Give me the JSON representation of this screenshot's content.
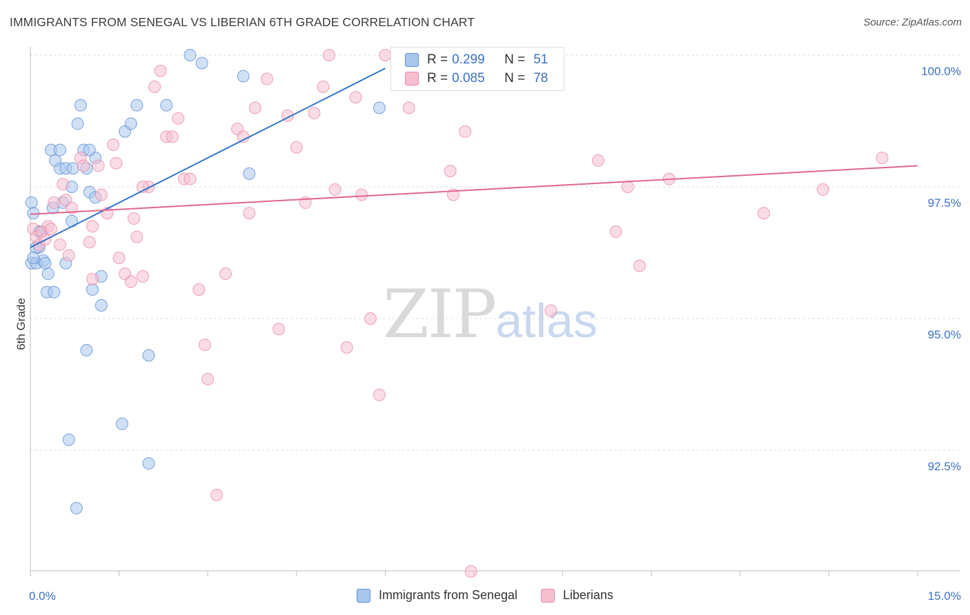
{
  "title": "IMMIGRANTS FROM SENEGAL VS LIBERIAN 6TH GRADE CORRELATION CHART",
  "source": "Source: ZipAtlas.com",
  "watermark": {
    "zip": "ZIP",
    "atlas": "atlas"
  },
  "legend": {
    "series1": {
      "r_label": "R =",
      "r_value": "0.299",
      "n_label": "N =",
      "n_value": "51"
    },
    "series2": {
      "r_label": "R =",
      "r_value": "0.085",
      "n_label": "N =",
      "n_value": "78"
    }
  },
  "bottom_legend": [
    "Immigrants from Senegal",
    "Liberians"
  ],
  "colors": {
    "blue_fill": "#a9c6ec",
    "blue_stroke": "#5b8fd6",
    "blue_line": "#2f72cc",
    "pink_fill": "#f6bfd0",
    "pink_stroke": "#e88aa9",
    "pink_line": "#e0668e",
    "tick_label": "#3c6fc4",
    "grid": "#d9d9d9"
  },
  "chart_data": {
    "type": "scatter",
    "title": "IMMIGRANTS FROM SENEGAL VS LIBERIAN 6TH GRADE CORRELATION CHART",
    "xlabel": "",
    "ylabel": "6th Grade",
    "xlim": [
      0,
      15
    ],
    "ylim": [
      90.2,
      100.25
    ],
    "x_tick_labels": [
      "0.0%",
      "15.0%"
    ],
    "y_ticks": [
      92.5,
      95.0,
      97.5,
      100.0
    ],
    "y_tick_labels": [
      "92.5%",
      "95.0%",
      "97.5%",
      "100.0%"
    ],
    "grid": "horizontal dashed",
    "series": [
      {
        "name": "Immigrants from Senegal",
        "color": "#5b8fd6",
        "trend": {
          "x": [
            0.0,
            6.0
          ],
          "y": [
            96.35,
            99.75
          ]
        },
        "points": [
          [
            0.02,
            97.2
          ],
          [
            0.05,
            97.0
          ],
          [
            0.02,
            96.05
          ],
          [
            0.1,
            96.05
          ],
          [
            0.15,
            96.35
          ],
          [
            0.22,
            96.1
          ],
          [
            0.25,
            96.05
          ],
          [
            0.3,
            95.85
          ],
          [
            0.28,
            95.5
          ],
          [
            0.4,
            95.5
          ],
          [
            0.1,
            96.35
          ],
          [
            0.15,
            96.65
          ],
          [
            0.38,
            97.1
          ],
          [
            0.55,
            97.2
          ],
          [
            0.7,
            96.85
          ],
          [
            0.5,
            97.85
          ],
          [
            0.6,
            97.85
          ],
          [
            0.72,
            97.85
          ],
          [
            0.42,
            98.0
          ],
          [
            0.95,
            97.85
          ],
          [
            0.7,
            97.5
          ],
          [
            1.0,
            97.4
          ],
          [
            1.1,
            97.3
          ],
          [
            1.1,
            98.05
          ],
          [
            0.35,
            98.2
          ],
          [
            0.5,
            98.2
          ],
          [
            0.9,
            98.2
          ],
          [
            1.0,
            98.2
          ],
          [
            0.8,
            98.7
          ],
          [
            0.85,
            99.05
          ],
          [
            1.6,
            98.55
          ],
          [
            1.7,
            98.7
          ],
          [
            1.8,
            99.05
          ],
          [
            2.3,
            99.05
          ],
          [
            2.7,
            100.0
          ],
          [
            2.9,
            99.85
          ],
          [
            3.6,
            99.6
          ],
          [
            5.9,
            99.0
          ],
          [
            3.7,
            97.75
          ],
          [
            1.2,
            95.8
          ],
          [
            1.05,
            95.55
          ],
          [
            1.2,
            95.25
          ],
          [
            0.95,
            94.4
          ],
          [
            2.0,
            94.3
          ],
          [
            1.55,
            93.0
          ],
          [
            0.65,
            92.7
          ],
          [
            2.0,
            92.25
          ],
          [
            0.78,
            91.4
          ],
          [
            0.05,
            96.15
          ],
          [
            0.18,
            96.65
          ],
          [
            0.6,
            96.05
          ]
        ]
      },
      {
        "name": "Liberians",
        "color": "#e88aa9",
        "trend": {
          "x": [
            0.0,
            15.0
          ],
          "y": [
            96.98,
            97.9
          ]
        },
        "points": [
          [
            0.05,
            96.7
          ],
          [
            0.1,
            96.55
          ],
          [
            0.15,
            96.4
          ],
          [
            0.2,
            96.65
          ],
          [
            0.25,
            96.5
          ],
          [
            0.3,
            96.75
          ],
          [
            0.35,
            96.7
          ],
          [
            0.4,
            97.2
          ],
          [
            0.5,
            96.4
          ],
          [
            0.55,
            97.55
          ],
          [
            0.6,
            97.25
          ],
          [
            0.65,
            96.2
          ],
          [
            0.7,
            97.1
          ],
          [
            0.85,
            98.05
          ],
          [
            0.9,
            97.9
          ],
          [
            1.0,
            96.45
          ],
          [
            1.05,
            96.75
          ],
          [
            1.15,
            97.9
          ],
          [
            1.2,
            97.35
          ],
          [
            1.3,
            97.0
          ],
          [
            1.4,
            98.3
          ],
          [
            1.45,
            97.95
          ],
          [
            1.5,
            96.15
          ],
          [
            1.6,
            95.85
          ],
          [
            1.7,
            95.7
          ],
          [
            1.75,
            96.9
          ],
          [
            1.8,
            96.55
          ],
          [
            1.9,
            95.8
          ],
          [
            2.0,
            97.5
          ],
          [
            2.1,
            99.4
          ],
          [
            2.2,
            99.7
          ],
          [
            2.3,
            98.45
          ],
          [
            2.4,
            98.45
          ],
          [
            2.5,
            98.8
          ],
          [
            2.6,
            97.65
          ],
          [
            2.7,
            97.65
          ],
          [
            2.85,
            95.55
          ],
          [
            2.95,
            94.5
          ],
          [
            3.0,
            93.85
          ],
          [
            3.15,
            91.65
          ],
          [
            3.3,
            95.85
          ],
          [
            3.5,
            98.6
          ],
          [
            3.6,
            98.45
          ],
          [
            3.7,
            97.0
          ],
          [
            3.8,
            99.0
          ],
          [
            4.0,
            99.55
          ],
          [
            4.2,
            94.8
          ],
          [
            4.35,
            98.85
          ],
          [
            4.5,
            98.25
          ],
          [
            4.65,
            97.2
          ],
          [
            4.8,
            98.9
          ],
          [
            4.95,
            99.4
          ],
          [
            5.05,
            100.0
          ],
          [
            5.15,
            97.45
          ],
          [
            5.35,
            94.45
          ],
          [
            5.5,
            99.2
          ],
          [
            5.6,
            97.35
          ],
          [
            5.75,
            95.0
          ],
          [
            5.9,
            93.55
          ],
          [
            6.0,
            100.0
          ],
          [
            6.4,
            99.0
          ],
          [
            6.9,
            99.5
          ],
          [
            6.95,
            99.5
          ],
          [
            7.1,
            97.8
          ],
          [
            7.15,
            97.35
          ],
          [
            7.35,
            98.55
          ],
          [
            7.45,
            90.2
          ],
          [
            8.8,
            95.15
          ],
          [
            9.6,
            98.0
          ],
          [
            9.9,
            96.65
          ],
          [
            10.1,
            97.5
          ],
          [
            10.3,
            96.0
          ],
          [
            10.8,
            97.65
          ],
          [
            12.4,
            97.0
          ],
          [
            13.4,
            97.45
          ],
          [
            14.4,
            98.05
          ],
          [
            1.9,
            97.5
          ],
          [
            1.05,
            95.75
          ]
        ]
      }
    ]
  }
}
